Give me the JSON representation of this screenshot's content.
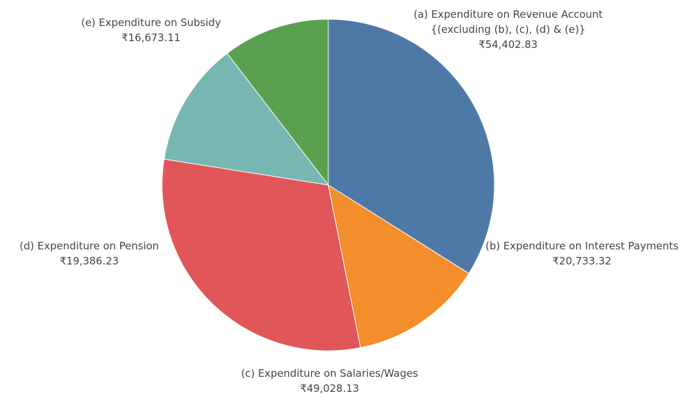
{
  "chart_data": {
    "type": "pie",
    "title": "",
    "start_angle_deg": 0,
    "direction": "clockwise",
    "slices": [
      {
        "label_lines": [
          "(a) Expenditure on Revenue Account",
          "{(excluding (b), (c), (d) & (e)}"
        ],
        "value": 54402.83,
        "value_text": "₹54,402.83",
        "color": "#4e79a7"
      },
      {
        "label_lines": [
          "(b) Expenditure on Interest Payments"
        ],
        "value": 20733.32,
        "value_text": "₹20,733.32",
        "color": "#f28e2b"
      },
      {
        "label_lines": [
          "(c) Expenditure on Salaries/Wages"
        ],
        "value": 49028.13,
        "value_text": "₹49,028.13",
        "color": "#e15759"
      },
      {
        "label_lines": [
          "(d) Expenditure on Pension"
        ],
        "value": 19386.23,
        "value_text": "₹19,386.23",
        "color": "#76b7b2"
      },
      {
        "label_lines": [
          "(e) Expenditure on Subsidy"
        ],
        "value": 16673.11,
        "value_text": "₹16,673.11",
        "color": "#59a14f"
      }
    ]
  }
}
